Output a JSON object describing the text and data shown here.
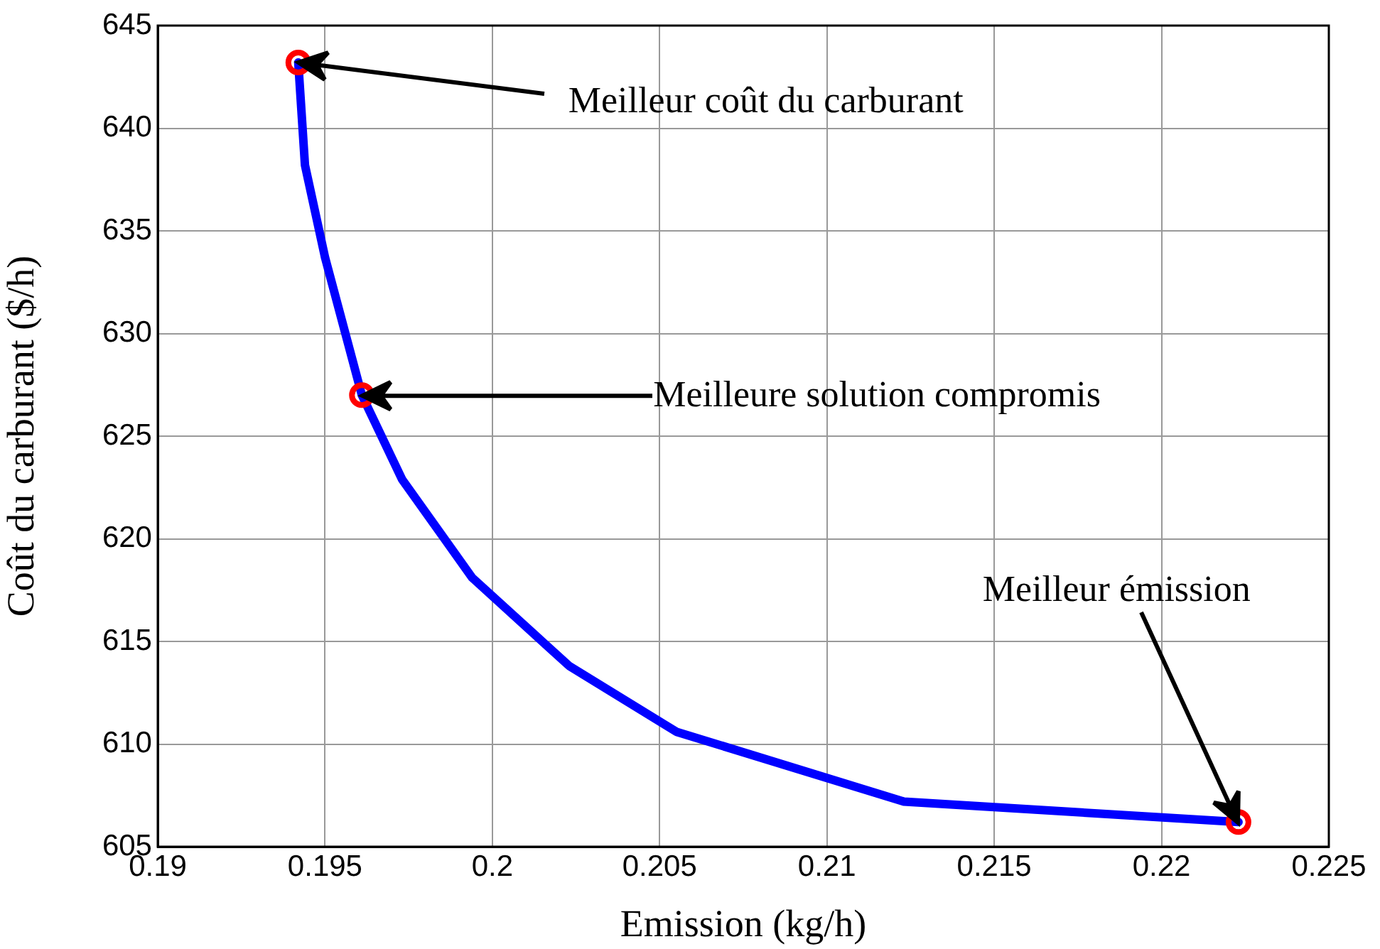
{
  "chart_data": {
    "type": "line",
    "xlabel": "Emission (kg/h)",
    "ylabel": "Coût du carburant ($/h)",
    "xlim": [
      0.19,
      0.225
    ],
    "xticks": [
      0.19,
      0.195,
      0.2,
      0.205,
      0.21,
      0.215,
      0.22,
      0.225
    ],
    "ylim": [
      605,
      645
    ],
    "yticks": [
      605,
      610,
      615,
      620,
      625,
      630,
      635,
      640,
      645
    ],
    "grid": true,
    "series": [
      {
        "type": "line",
        "color": "#0000ff",
        "marker": "none",
        "x": [
          0.1942,
          0.1944,
          0.195,
          0.1961,
          0.1973,
          0.1994,
          0.2023,
          0.2055,
          0.2123,
          0.2223
        ],
        "values": [
          643.2,
          638.2,
          633.7,
          627.0,
          622.9,
          618.1,
          613.8,
          610.6,
          607.2,
          606.2
        ]
      },
      {
        "type": "scatter",
        "color": "#ff0000",
        "marker": "circle",
        "x": [
          0.1942,
          0.1961,
          0.2223
        ],
        "values": [
          643.2,
          627.0,
          606.2
        ]
      }
    ],
    "annotations": [
      {
        "text": "Meilleur coût du carburant",
        "x": 0.1942,
        "y": 643.2
      },
      {
        "text": "Meilleure solution compromis",
        "x": 0.1961,
        "y": 627.0
      },
      {
        "text": "Meilleur émission",
        "x": 0.2223,
        "y": 606.2
      }
    ]
  }
}
